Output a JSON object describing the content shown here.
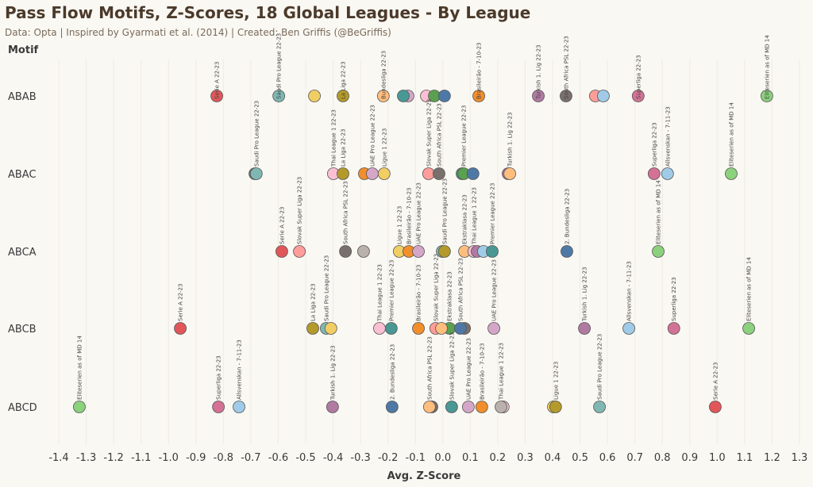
{
  "chart_data": {
    "type": "scatter",
    "title": "Pass Flow Motifs, Z-Scores, 18 Global Leagues - By League",
    "subtitle": "Data: Opta | Inspired by Gyarmati et al. (2014) | Created: Ben Griffis (@BeGriffis)",
    "ylabel": "Motif",
    "xlabel": "Avg. Z-Score",
    "xlim": [
      -1.4,
      1.3
    ],
    "xticks": [
      "-1.4",
      "-1.3",
      "-1.2",
      "-1.1",
      "-1.0",
      "-0.9",
      "-0.8",
      "-0.7",
      "-0.6",
      "-0.5",
      "-0.4",
      "-0.3",
      "-0.2",
      "-0.1",
      "0.0",
      "0.1",
      "0.2",
      "0.3",
      "0.4",
      "0.5",
      "0.6",
      "0.7",
      "0.8",
      "0.9",
      "1.0",
      "1.1",
      "1.2",
      "1.3"
    ],
    "palette": {
      "serie": "#e15759",
      "saudi": "#7fb8b2",
      "laliga": "#b39a2b",
      "bund": "#ffbe7d",
      "bras": "#f28e2b",
      "turk": "#b07aa1",
      "sapsl": "#79706e",
      "superliga": "#d37295",
      "elite": "#8cd17d",
      "thai": "#fabfd2",
      "prem": "#499894",
      "slovak": "#ff9d9a",
      "ligue": "#f1ce63",
      "uae": "#d4a6c8",
      "ekstra": "#59a14f",
      "alls": "#a0cbe8",
      "bund2": "#4e79a7",
      "other": "#bab0ac"
    },
    "rows": [
      {
        "motif": "ABAB",
        "points": [
          {
            "v": -0.824,
            "c": "serie",
            "label": "Serie A 22-23"
          },
          {
            "v": -0.598,
            "c": "saudi",
            "label": "Saudi Pro League 22-23"
          },
          {
            "v": -0.468,
            "c": "ligue",
            "label": ""
          },
          {
            "v": -0.364,
            "c": "laliga",
            "label": "La Liga 22-23"
          },
          {
            "v": -0.217,
            "c": "bund",
            "label": "Bundesliga 22-23"
          },
          {
            "v": -0.127,
            "c": "uae",
            "label": ""
          },
          {
            "v": -0.144,
            "c": "prem",
            "label": ""
          },
          {
            "v": -0.06,
            "c": "thai",
            "label": ""
          },
          {
            "v": -0.031,
            "c": "ekstra",
            "label": ""
          },
          {
            "v": 0.006,
            "c": "bund2",
            "label": ""
          },
          {
            "v": 0.131,
            "c": "bras",
            "label": "Brasileirão - 7-10-23"
          },
          {
            "v": 0.348,
            "c": "turk",
            "label": "Turkish 1. Lig 22-23"
          },
          {
            "v": 0.449,
            "c": "sapsl",
            "label": "South Africa PSL 22-23"
          },
          {
            "v": 0.556,
            "c": "slovak",
            "label": ""
          },
          {
            "v": 0.585,
            "c": "alls",
            "label": ""
          },
          {
            "v": 0.712,
            "c": "superliga",
            "label": "Superliga 22-23"
          },
          {
            "v": 1.181,
            "c": "elite",
            "label": "Eliteserien as of MD 14"
          }
        ]
      },
      {
        "motif": "ABAC",
        "points": [
          {
            "v": -0.685,
            "c": "sapsl",
            "label": ""
          },
          {
            "v": -0.68,
            "c": "saudi",
            "label": "Saudi Pro League 22-23"
          },
          {
            "v": -0.399,
            "c": "thai",
            "label": "Thai League 1 22-23"
          },
          {
            "v": -0.364,
            "c": "laliga",
            "label": "La Liga 22-23"
          },
          {
            "v": -0.286,
            "c": "bras",
            "label": ""
          },
          {
            "v": -0.257,
            "c": "uae",
            "label": "UAE Pro League 22-23"
          },
          {
            "v": -0.214,
            "c": "ligue",
            "label": "Ligue 1 22-23"
          },
          {
            "v": -0.052,
            "c": "slovak",
            "label": "Slovak Super Liga 22-23"
          },
          {
            "v": -0.014,
            "c": "sapsl",
            "label": "South Africa PSL 22-23"
          },
          {
            "v": 0.07,
            "c": "prem",
            "label": ""
          },
          {
            "v": 0.076,
            "c": "ekstra",
            "label": "Premier League 22-23"
          },
          {
            "v": 0.11,
            "c": "bund2",
            "label": ""
          },
          {
            "v": 0.238,
            "c": "turk",
            "label": ""
          },
          {
            "v": 0.244,
            "c": "bund",
            "label": "Turkish 1. Lig 22-23"
          },
          {
            "v": 0.77,
            "c": "superliga",
            "label": "Superliga 22-23"
          },
          {
            "v": 0.819,
            "c": "alls",
            "label": "Allsvenskan - 7-11-23"
          },
          {
            "v": 1.051,
            "c": "elite",
            "label": "Eliteserien as of MD 14"
          }
        ]
      },
      {
        "motif": "ABCA",
        "points": [
          {
            "v": -0.587,
            "c": "serie",
            "label": "Serie A 22-23"
          },
          {
            "v": -0.523,
            "c": "slovak",
            "label": "Slovak Super Liga 22-23"
          },
          {
            "v": -0.355,
            "c": "sapsl",
            "label": "South Africa PSL 22-23"
          },
          {
            "v": -0.289,
            "c": "other",
            "label": ""
          },
          {
            "v": -0.159,
            "c": "ligue",
            "label": "Ligue 1 22-23"
          },
          {
            "v": -0.124,
            "c": "bras",
            "label": "Brasileirão - 7-10-23"
          },
          {
            "v": -0.089,
            "c": "uae",
            "label": "UAE Pro League 22-23"
          },
          {
            "v": -0.002,
            "c": "saudi",
            "label": ""
          },
          {
            "v": 0.006,
            "c": "laliga",
            "label": "Saudi Pro League 22-23"
          },
          {
            "v": 0.079,
            "c": "bund",
            "label": "Ekstraklasa 22-23"
          },
          {
            "v": 0.113,
            "c": "thai",
            "label": "Thai League 1 22-23"
          },
          {
            "v": 0.125,
            "c": "turk",
            "label": ""
          },
          {
            "v": 0.148,
            "c": "alls",
            "label": ""
          },
          {
            "v": 0.18,
            "c": "prem",
            "label": "Premier League 22-23"
          },
          {
            "v": 0.452,
            "c": "bund2",
            "label": "2. Bundesliga 22-23"
          },
          {
            "v": 0.785,
            "c": "elite",
            "label": "Eliteserien as of MD 14"
          }
        ]
      },
      {
        "motif": "ABCB",
        "points": [
          {
            "v": -0.957,
            "c": "serie",
            "label": "Serie A 22-23"
          },
          {
            "v": -0.474,
            "c": "laliga",
            "label": "La Liga 22-23"
          },
          {
            "v": -0.425,
            "c": "saudi",
            "label": "Saudi Pro League 22-23"
          },
          {
            "v": -0.408,
            "c": "ligue",
            "label": ""
          },
          {
            "v": -0.231,
            "c": "thai",
            "label": "Thai League 1 22-23"
          },
          {
            "v": -0.188,
            "c": "prem",
            "label": "Premier League 22-23"
          },
          {
            "v": -0.089,
            "c": "bras",
            "label": "Brasileirão - 7-10-23"
          },
          {
            "v": -0.026,
            "c": "slovak",
            "label": "Slovak Super Liga 22-23"
          },
          {
            "v": 0.024,
            "c": "ekstra",
            "label": "Ekstraklasa 22-23"
          },
          {
            "v": -0.005,
            "c": "bund",
            "label": ""
          },
          {
            "v": 0.079,
            "c": "sapsl",
            "label": ""
          },
          {
            "v": 0.064,
            "c": "bund2",
            "label": "South Africa PSL 22-23"
          },
          {
            "v": 0.186,
            "c": "uae",
            "label": "UAE Pro League 22-23"
          },
          {
            "v": 0.516,
            "c": "turk",
            "label": "Turkish 1. Lig 22-23"
          },
          {
            "v": 0.678,
            "c": "alls",
            "label": "Allsvenskan - 7-11-23"
          },
          {
            "v": 0.842,
            "c": "superliga",
            "label": "Superliga 22-23"
          },
          {
            "v": 1.115,
            "c": "elite",
            "label": "Eliteserien as of MD 14"
          }
        ]
      },
      {
        "motif": "ABCD",
        "points": [
          {
            "v": -1.325,
            "c": "elite",
            "label": "Eliteserien as of MD 14"
          },
          {
            "v": -0.818,
            "c": "superliga",
            "label": "Superliga 22-23"
          },
          {
            "v": -0.743,
            "c": "alls",
            "label": "Allsvenskan - 7-11-23"
          },
          {
            "v": -0.402,
            "c": "turk",
            "label": "Turkish 1. Lig 22-23"
          },
          {
            "v": -0.185,
            "c": "bund2",
            "label": "2. Bundesliga 22-23"
          },
          {
            "v": -0.04,
            "c": "sapsl",
            "label": ""
          },
          {
            "v": -0.049,
            "c": "bund",
            "label": "South Africa PSL 22-23"
          },
          {
            "v": 0.032,
            "c": "prem",
            "label": "Slovak Super Liga 22-23"
          },
          {
            "v": 0.093,
            "c": "uae",
            "label": "UAE Pro League 22-23"
          },
          {
            "v": 0.142,
            "c": "bras",
            "label": "Brasileirão - 7-10-23"
          },
          {
            "v": 0.22,
            "c": "thai",
            "label": ""
          },
          {
            "v": 0.212,
            "c": "other",
            "label": "Thai League 1 22-23"
          },
          {
            "v": 0.403,
            "c": "ligue",
            "label": ""
          },
          {
            "v": 0.411,
            "c": "laliga",
            "label": "Ligue 1 22-23"
          },
          {
            "v": 0.571,
            "c": "saudi",
            "label": "Saudi Pro League 22-23"
          },
          {
            "v": 0.993,
            "c": "serie",
            "label": "Serie A 22-23"
          }
        ]
      }
    ]
  }
}
